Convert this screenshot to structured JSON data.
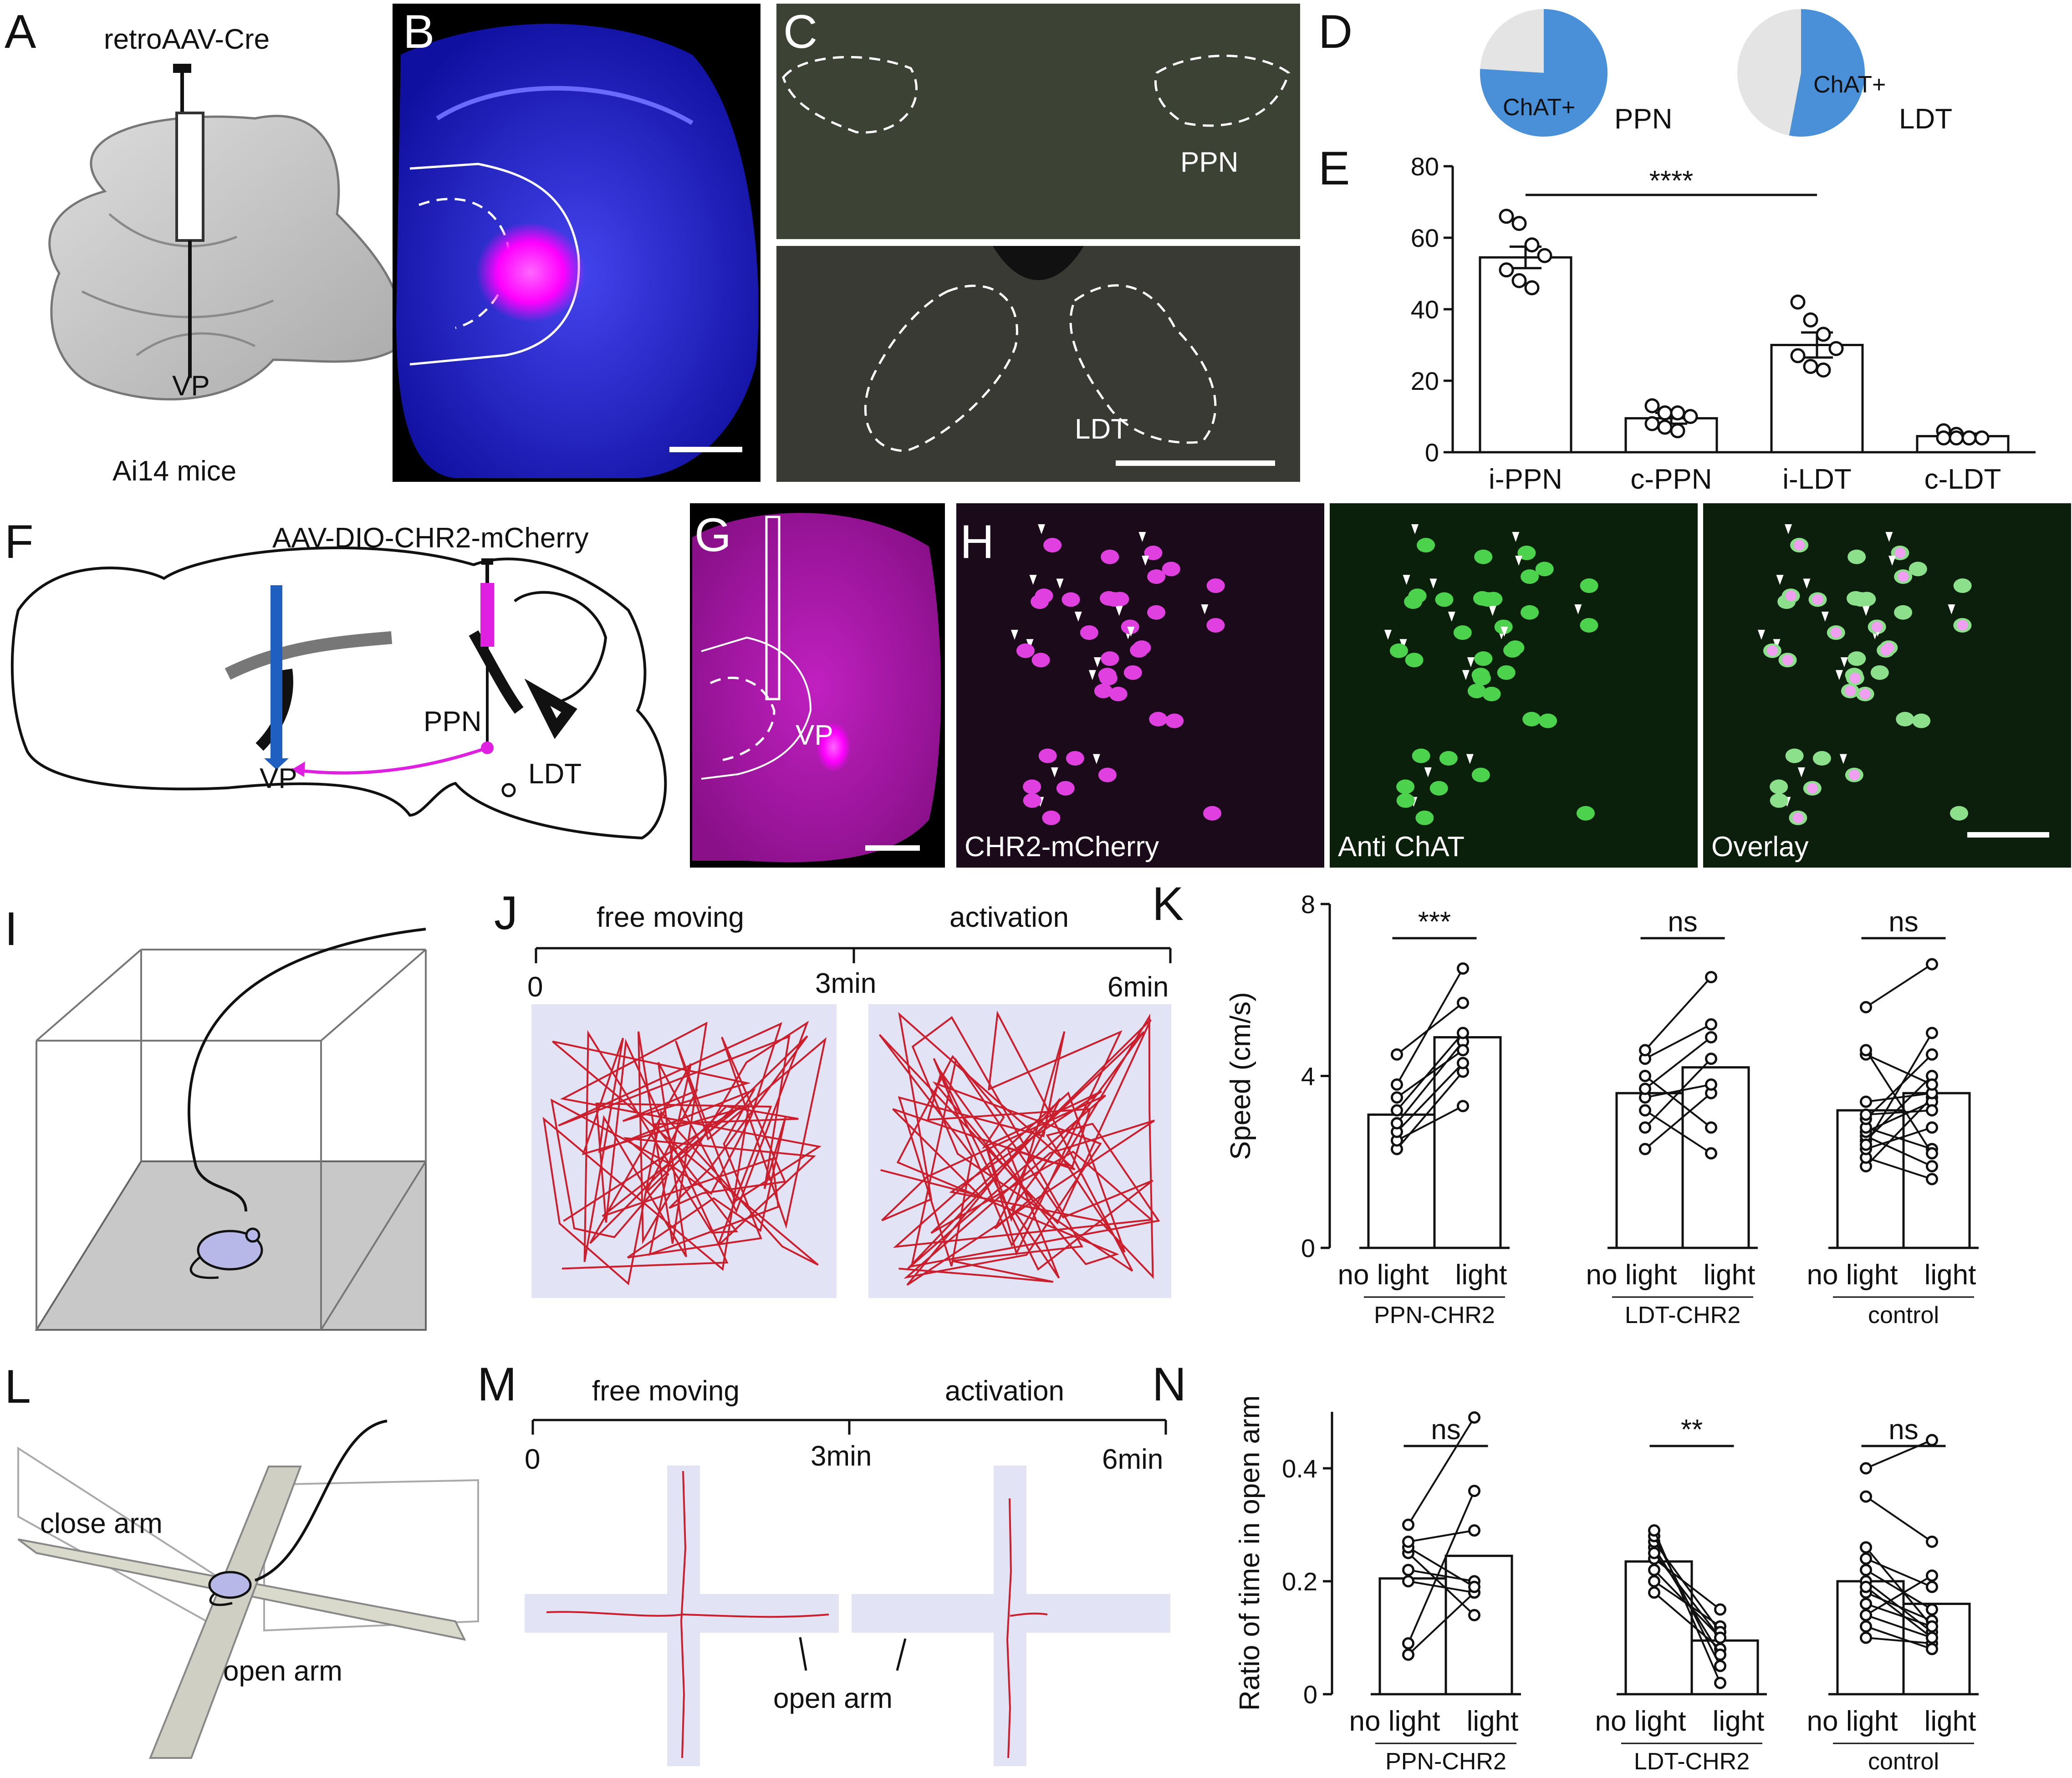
{
  "panels": {
    "A": "A",
    "B": "B",
    "C": "C",
    "D": "D",
    "E": "E",
    "F": "F",
    "G": "G",
    "H": "H",
    "I": "I",
    "J": "J",
    "K": "K",
    "L": "L",
    "M": "M",
    "N": "N"
  },
  "panel_a": {
    "virus": "retroAAV-Cre",
    "target": "VP",
    "mice": "Ai14 mice"
  },
  "panel_c": {
    "top_label": "PPN",
    "bottom_label": "LDT"
  },
  "panel_d": {
    "label": "ChAT+",
    "pies": [
      {
        "region": "PPN",
        "chat_fraction": 0.76
      },
      {
        "region": "LDT",
        "chat_fraction": 0.53
      }
    ],
    "colors": {
      "chat": "#4a90d9",
      "other": "#e4e4e4"
    }
  },
  "panel_f": {
    "virus": "AAV-DIO-CHR2-mCherry",
    "vp": "VP",
    "ppn": "PPN",
    "ldt": "LDT",
    "colors": {
      "vp_probe": "#1f5fbf",
      "injection": "#e020e0"
    }
  },
  "panel_g": {
    "label": "VP"
  },
  "panel_h": {
    "channels": [
      "CHR2-mCherry",
      "Anti ChAT",
      "Overlay"
    ]
  },
  "panel_j": {
    "phases": [
      "free moving",
      "activation"
    ],
    "times": [
      "0",
      "3min",
      "6min"
    ]
  },
  "panel_m": {
    "phases": [
      "free moving",
      "activation"
    ],
    "times": [
      "0",
      "3min",
      "6min"
    ],
    "arm_label": "open arm"
  },
  "panel_l": {
    "close": "close arm",
    "open": "open arm"
  },
  "chart_data": [
    {
      "id": "E",
      "type": "bar",
      "categories": [
        "i-PPN",
        "c-PPN",
        "i-LDT",
        "c-LDT"
      ],
      "values": [
        54.5,
        9.5,
        30,
        4.5
      ],
      "sem": [
        3,
        1.5,
        3.5,
        0.7
      ],
      "points": [
        [
          66,
          64,
          58,
          55,
          51,
          48,
          46
        ],
        [
          13,
          11,
          11,
          10,
          8,
          7,
          6
        ],
        [
          42,
          37,
          33,
          29,
          27,
          24,
          23
        ],
        [
          6,
          5,
          4,
          4,
          4,
          4,
          4
        ]
      ],
      "ylim": [
        0,
        80
      ],
      "yticks": [
        "0",
        "20",
        "40",
        "60",
        "80"
      ],
      "significance": "****"
    },
    {
      "id": "K",
      "type": "bar",
      "ylabel": "Speed (cm/s)",
      "ylim": [
        0,
        8
      ],
      "yticks": [
        "0",
        "4",
        "8"
      ],
      "categories": [
        "no light",
        "light"
      ],
      "groups": [
        {
          "name": "PPN-CHR2",
          "sig": "***",
          "means": [
            3.1,
            4.9
          ],
          "pairs": [
            [
              2.3,
              4.1
            ],
            [
              2.5,
              3.3
            ],
            [
              2.7,
              4.3
            ],
            [
              2.9,
              4.8
            ],
            [
              3.2,
              5.0
            ],
            [
              3.5,
              4.6
            ],
            [
              3.8,
              6.5
            ],
            [
              4.5,
              5.7
            ]
          ]
        },
        {
          "name": "LDT-CHR2",
          "sig": "ns",
          "means": [
            3.6,
            4.2
          ],
          "pairs": [
            [
              2.3,
              3.6
            ],
            [
              2.8,
              4.4
            ],
            [
              3.2,
              2.2
            ],
            [
              3.5,
              3.8
            ],
            [
              3.7,
              4.9
            ],
            [
              4.0,
              2.8
            ],
            [
              4.4,
              5.2
            ],
            [
              4.6,
              6.3
            ]
          ]
        },
        {
          "name": "control",
          "sig": "ns",
          "means": [
            3.2,
            3.6
          ],
          "pairs": [
            [
              1.9,
              3.5
            ],
            [
              2.1,
              1.6
            ],
            [
              2.3,
              2.8
            ],
            [
              2.5,
              4.0
            ],
            [
              2.6,
              1.9
            ],
            [
              2.7,
              3.4
            ],
            [
              2.8,
              2.3
            ],
            [
              3.0,
              4.5
            ],
            [
              3.4,
              3.6
            ],
            [
              4.5,
              3.8
            ],
            [
              4.6,
              2.2
            ],
            [
              5.6,
              6.6
            ],
            [
              2.4,
              5.0
            ],
            [
              3.1,
              3.2
            ]
          ]
        }
      ]
    },
    {
      "id": "N",
      "type": "bar",
      "ylabel": "Ratio of time in open arm",
      "ylim": [
        0,
        0.5
      ],
      "yticks": [
        "0",
        "0.2",
        "0.4"
      ],
      "categories": [
        "no light",
        "light"
      ],
      "groups": [
        {
          "name": "PPN-CHR2",
          "sig": "ns",
          "means": [
            0.205,
            0.245
          ],
          "pairs": [
            [
              0.07,
              0.18
            ],
            [
              0.09,
              0.36
            ],
            [
              0.2,
              0.18
            ],
            [
              0.22,
              0.2
            ],
            [
              0.25,
              0.14
            ],
            [
              0.26,
              0.19
            ],
            [
              0.27,
              0.29
            ],
            [
              0.3,
              0.49
            ]
          ]
        },
        {
          "name": "LDT-CHR2",
          "sig": "**",
          "means": [
            0.235,
            0.095
          ],
          "pairs": [
            [
              0.18,
              0.08
            ],
            [
              0.2,
              0.12
            ],
            [
              0.22,
              0.1
            ],
            [
              0.24,
              0.15
            ],
            [
              0.26,
              0.07
            ],
            [
              0.27,
              0.11
            ],
            [
              0.28,
              0.05
            ],
            [
              0.29,
              0.02
            ],
            [
              0.25,
              0.1
            ]
          ]
        },
        {
          "name": "control",
          "sig": "ns",
          "means": [
            0.2,
            0.16
          ],
          "pairs": [
            [
              0.1,
              0.09
            ],
            [
              0.12,
              0.08
            ],
            [
              0.14,
              0.1
            ],
            [
              0.16,
              0.12
            ],
            [
              0.18,
              0.13
            ],
            [
              0.2,
              0.11
            ],
            [
              0.22,
              0.15
            ],
            [
              0.24,
              0.19
            ],
            [
              0.26,
              0.12
            ],
            [
              0.35,
              0.27
            ],
            [
              0.4,
              0.45
            ],
            [
              0.14,
              0.21
            ],
            [
              0.19,
              0.1
            ]
          ]
        }
      ]
    }
  ]
}
